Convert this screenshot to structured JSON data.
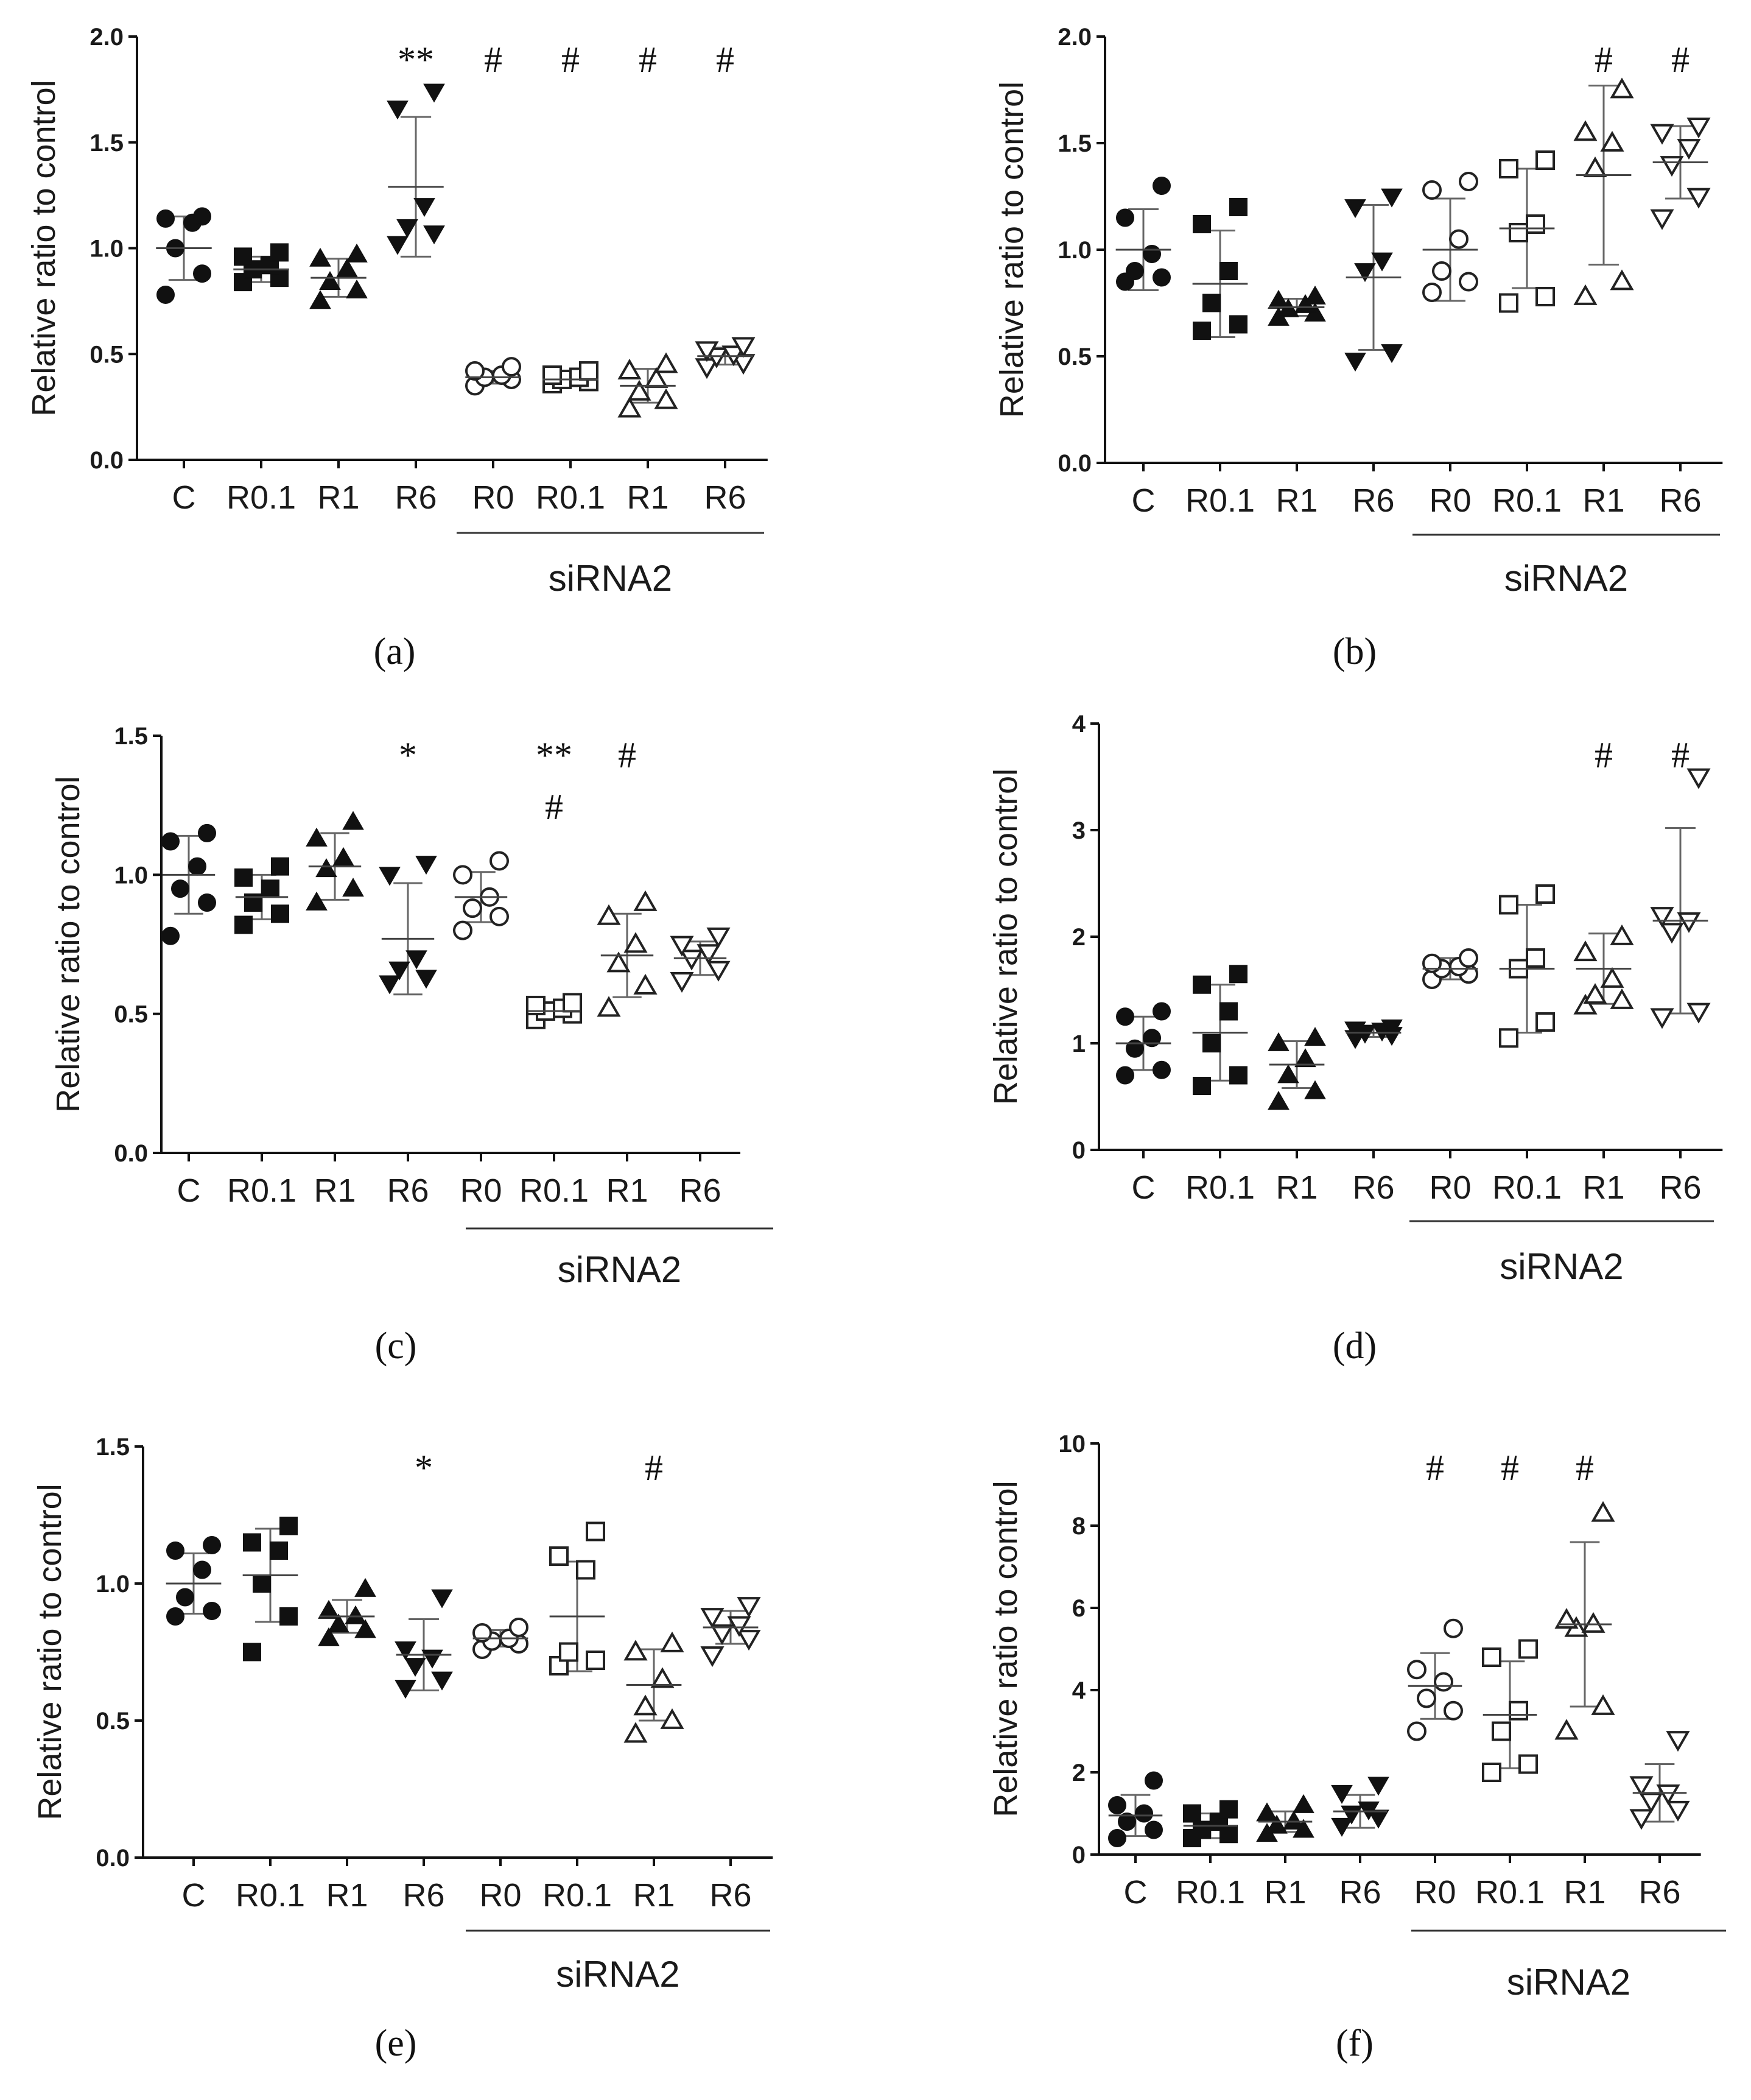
{
  "chart_data": [
    {
      "panel": "(a)",
      "type": "scatter",
      "ylabel": "Relative ratio to control",
      "ylim": [
        0,
        2.0
      ],
      "yticks": [
        "0.0",
        "0.5",
        "1.0",
        "1.5",
        "2.0"
      ],
      "categories": [
        "C",
        "R0.1",
        "R1",
        "R6",
        "R0",
        "R0.1",
        "R1",
        "R6"
      ],
      "group_label": "siRNA2",
      "markers": [
        "circle",
        "square",
        "triangle",
        "triangle-down",
        "circle-open",
        "square-open",
        "triangle-open",
        "triangle-down-open"
      ],
      "points": [
        [
          0.78,
          0.88,
          1.0,
          1.12,
          1.14,
          1.15
        ],
        [
          0.84,
          0.86,
          0.9,
          0.92,
          0.96,
          0.98
        ],
        [
          0.75,
          0.8,
          0.84,
          0.9,
          0.95,
          0.97
        ],
        [
          1.02,
          1.07,
          1.1,
          1.2,
          1.66,
          1.74
        ],
        [
          0.35,
          0.38,
          0.39,
          0.4,
          0.42,
          0.44
        ],
        [
          0.36,
          0.37,
          0.38,
          0.39,
          0.4,
          0.42
        ],
        [
          0.24,
          0.28,
          0.32,
          0.38,
          0.42,
          0.45
        ],
        [
          0.44,
          0.46,
          0.49,
          0.5,
          0.52,
          0.54
        ]
      ],
      "means": [
        1.0,
        0.9,
        0.86,
        1.29,
        0.39,
        0.38,
        0.35,
        0.49
      ],
      "sd": [
        0.15,
        0.06,
        0.09,
        0.33,
        0.03,
        0.02,
        0.08,
        0.04
      ],
      "annotations": [
        "",
        "",
        "",
        "**",
        "#",
        "#",
        "#",
        "#"
      ]
    },
    {
      "panel": "(b)",
      "type": "scatter",
      "ylabel": "Relative ratio to control",
      "ylim": [
        0,
        2.0
      ],
      "yticks": [
        "0.0",
        "0.5",
        "1.0",
        "1.5",
        "2.0"
      ],
      "categories": [
        "C",
        "R0.1",
        "R1",
        "R6",
        "R0",
        "R0.1",
        "R1",
        "R6"
      ],
      "group_label": "siRNA2",
      "markers": [
        "circle",
        "square",
        "triangle",
        "triangle-down",
        "circle-open",
        "square-open",
        "triangle-open",
        "triangle-down-open"
      ],
      "points": [
        [
          0.85,
          0.87,
          0.9,
          0.98,
          1.15,
          1.3
        ],
        [
          0.62,
          0.65,
          0.75,
          0.9,
          1.12,
          1.2
        ],
        [
          0.68,
          0.7,
          0.72,
          0.74,
          0.76,
          0.78
        ],
        [
          0.48,
          0.52,
          0.9,
          0.95,
          1.2,
          1.25
        ],
        [
          0.8,
          0.85,
          0.9,
          1.05,
          1.28,
          1.32
        ],
        [
          0.75,
          0.78,
          1.08,
          1.12,
          1.38,
          1.42
        ],
        [
          0.78,
          0.85,
          1.38,
          1.5,
          1.55,
          1.75
        ],
        [
          1.15,
          1.25,
          1.4,
          1.48,
          1.55,
          1.58
        ]
      ],
      "means": [
        1.0,
        0.84,
        0.73,
        0.87,
        1.0,
        1.1,
        1.35,
        1.41
      ],
      "sd": [
        0.19,
        0.25,
        0.04,
        0.34,
        0.24,
        0.28,
        0.42,
        0.17
      ],
      "annotations": [
        "",
        "",
        "",
        "",
        "",
        "",
        "#",
        "#"
      ]
    },
    {
      "panel": "(c)",
      "type": "scatter",
      "ylabel": "Relative ratio to control",
      "ylim": [
        0,
        1.5
      ],
      "yticks": [
        "0.0",
        "0.5",
        "1.0",
        "1.5"
      ],
      "categories": [
        "C",
        "R0.1",
        "R1",
        "R6",
        "R0",
        "R0.1",
        "R1",
        "R6"
      ],
      "group_label": "siRNA2",
      "markers": [
        "circle",
        "square",
        "triangle",
        "triangle-down",
        "circle-open",
        "square-open",
        "triangle-open",
        "triangle-down-open"
      ],
      "points": [
        [
          0.78,
          0.9,
          0.95,
          1.03,
          1.12,
          1.15
        ],
        [
          0.82,
          0.86,
          0.9,
          0.95,
          0.99,
          1.03
        ],
        [
          0.9,
          0.95,
          1.02,
          1.06,
          1.13,
          1.19
        ],
        [
          0.61,
          0.63,
          0.66,
          0.7,
          1.0,
          1.04
        ],
        [
          0.8,
          0.85,
          0.88,
          0.92,
          1.0,
          1.05
        ],
        [
          0.48,
          0.5,
          0.51,
          0.52,
          0.53,
          0.54
        ],
        [
          0.52,
          0.6,
          0.68,
          0.75,
          0.85,
          0.9
        ],
        [
          0.62,
          0.66,
          0.7,
          0.72,
          0.75,
          0.78
        ]
      ],
      "means": [
        1.0,
        0.92,
        1.03,
        0.77,
        0.92,
        0.51,
        0.71,
        0.7
      ],
      "sd": [
        0.14,
        0.08,
        0.12,
        0.2,
        0.09,
        0.02,
        0.15,
        0.06
      ],
      "annotations": [
        "",
        "",
        "",
        "*",
        "",
        "**\n#",
        "#",
        ""
      ]
    },
    {
      "panel": "(d)",
      "type": "scatter",
      "ylabel": "Relative ratio to control",
      "ylim": [
        0,
        4
      ],
      "yticks": [
        "0",
        "1",
        "2",
        "3",
        "4"
      ],
      "categories": [
        "C",
        "R0.1",
        "R1",
        "R6",
        "R0",
        "R0.1",
        "R1",
        "R6"
      ],
      "group_label": "siRNA2",
      "markers": [
        "circle",
        "square",
        "triangle",
        "triangle-down",
        "circle-open",
        "square-open",
        "triangle-open",
        "triangle-down-open"
      ],
      "points": [
        [
          0.7,
          0.75,
          0.95,
          1.05,
          1.25,
          1.3
        ],
        [
          0.6,
          0.7,
          1.0,
          1.3,
          1.55,
          1.65
        ],
        [
          0.45,
          0.55,
          0.7,
          0.85,
          1.0,
          1.05
        ],
        [
          1.05,
          1.08,
          1.1,
          1.12,
          1.13,
          1.15
        ],
        [
          1.6,
          1.65,
          1.7,
          1.72,
          1.75,
          1.8
        ],
        [
          1.05,
          1.2,
          1.7,
          1.8,
          2.3,
          2.4
        ],
        [
          1.35,
          1.4,
          1.45,
          1.6,
          1.85,
          2.0
        ],
        [
          1.25,
          1.3,
          2.05,
          2.15,
          2.2,
          3.5
        ]
      ],
      "means": [
        1.0,
        1.1,
        0.8,
        1.1,
        1.7,
        1.7,
        1.7,
        2.15
      ],
      "sd": [
        0.25,
        0.45,
        0.22,
        0.04,
        0.1,
        0.6,
        0.33,
        0.87
      ],
      "annotations": [
        "",
        "",
        "",
        "",
        "",
        "",
        "#",
        "#"
      ]
    },
    {
      "panel": "(e)",
      "type": "scatter",
      "ylabel": "Relative ratio to control",
      "ylim": [
        0,
        1.5
      ],
      "yticks": [
        "0.0",
        "0.5",
        "1.0",
        "1.5"
      ],
      "categories": [
        "C",
        "R0.1",
        "R1",
        "R6",
        "R0",
        "R0.1",
        "R1",
        "R6"
      ],
      "group_label": "siRNA2",
      "markers": [
        "circle",
        "square",
        "triangle",
        "triangle-down",
        "circle-open",
        "square-open",
        "triangle-open",
        "triangle-down-open"
      ],
      "points": [
        [
          0.88,
          0.9,
          0.95,
          1.05,
          1.12,
          1.14
        ],
        [
          0.75,
          0.88,
          1.0,
          1.12,
          1.15,
          1.21
        ],
        [
          0.8,
          0.83,
          0.85,
          0.88,
          0.9,
          0.98
        ],
        [
          0.62,
          0.65,
          0.7,
          0.73,
          0.76,
          0.95
        ],
        [
          0.76,
          0.78,
          0.79,
          0.8,
          0.82,
          0.84
        ],
        [
          0.7,
          0.72,
          0.75,
          1.05,
          1.1,
          1.19
        ],
        [
          0.45,
          0.5,
          0.55,
          0.65,
          0.75,
          0.78
        ],
        [
          0.74,
          0.8,
          0.82,
          0.85,
          0.88,
          0.92
        ]
      ],
      "means": [
        1.0,
        1.03,
        0.88,
        0.74,
        0.8,
        0.88,
        0.63,
        0.84
      ],
      "sd": [
        0.11,
        0.17,
        0.06,
        0.13,
        0.03,
        0.2,
        0.13,
        0.06
      ],
      "annotations": [
        "",
        "",
        "",
        "*",
        "",
        "",
        "#",
        ""
      ]
    },
    {
      "panel": "(f)",
      "type": "scatter",
      "ylabel": "Relative ratio to control",
      "ylim": [
        0,
        10
      ],
      "yticks": [
        "0",
        "2",
        "4",
        "6",
        "8",
        "10"
      ],
      "categories": [
        "C",
        "R0.1",
        "R1",
        "R6",
        "R0",
        "R0.1",
        "R1",
        "R6"
      ],
      "group_label": "siRNA2",
      "markers": [
        "circle",
        "square",
        "triangle",
        "triangle-down",
        "circle-open",
        "square-open",
        "triangle-open",
        "triangle-down-open"
      ],
      "points": [
        [
          0.4,
          0.6,
          0.8,
          1.0,
          1.2,
          1.8
        ],
        [
          0.4,
          0.5,
          0.6,
          0.8,
          1.0,
          1.1
        ],
        [
          0.5,
          0.6,
          0.7,
          0.8,
          1.0,
          1.2
        ],
        [
          0.7,
          0.9,
          1.0,
          1.1,
          1.5,
          1.7
        ],
        [
          3.0,
          3.5,
          3.8,
          4.2,
          4.5,
          5.5
        ],
        [
          2.0,
          2.2,
          3.0,
          3.5,
          4.8,
          5.0
        ],
        [
          3.0,
          3.6,
          5.5,
          5.6,
          5.7,
          8.3
        ],
        [
          0.9,
          1.1,
          1.3,
          1.5,
          1.7,
          2.8
        ]
      ],
      "means": [
        0.95,
        0.7,
        0.8,
        1.05,
        4.1,
        3.4,
        5.6,
        1.5
      ],
      "sd": [
        0.5,
        0.3,
        0.25,
        0.4,
        0.8,
        1.3,
        2.0,
        0.7
      ],
      "annotations": [
        "",
        "",
        "",
        "",
        "#",
        "#",
        "#",
        ""
      ]
    }
  ]
}
